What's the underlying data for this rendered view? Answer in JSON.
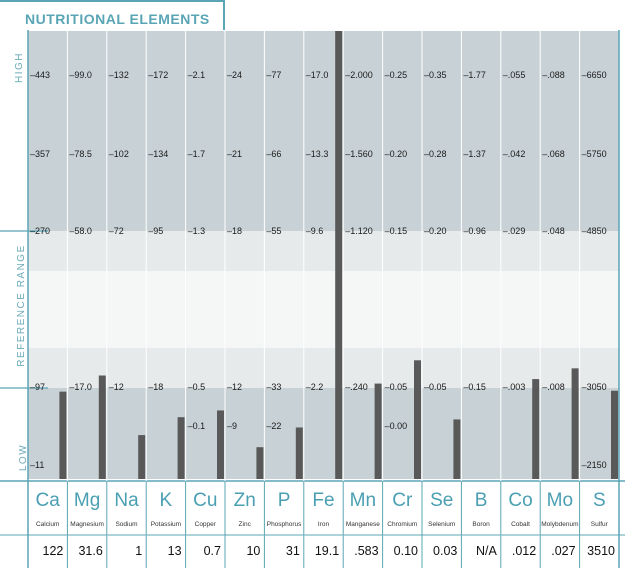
{
  "title": "NUTRITIONAL ELEMENTS",
  "band_labels": {
    "high": "HIGH",
    "reference": "REFERENCE  RANGE",
    "low": "LOW"
  },
  "colors": {
    "accent": "#5aa5b5",
    "high_band": "#c8d2d6",
    "low_band": "#c8d2d6",
    "ref_outer": "#e7eaeb",
    "ref_inner": "#f5f6f6",
    "bar": "#595959"
  },
  "chart_data": {
    "type": "bar",
    "title": "NUTRITIONAL ELEMENTS",
    "note": "Each element has its own vertical scale; bar height shows the result relative to that element's tick scale.",
    "elements": [
      {
        "symbol": "Ca",
        "name": "Calcium",
        "ticks": [
          "443",
          "357",
          "270",
          "",
          "97",
          "",
          "11"
        ],
        "result": "122"
      },
      {
        "symbol": "Mg",
        "name": "Magnesium",
        "ticks": [
          "99.0",
          "78.5",
          "58.0",
          "",
          "17.0",
          "",
          ""
        ],
        "result": "31.6"
      },
      {
        "symbol": "Na",
        "name": "Sodium",
        "ticks": [
          "132",
          "102",
          "72",
          "",
          "12",
          "",
          ""
        ],
        "result": "1"
      },
      {
        "symbol": "K",
        "name": "Potassium",
        "ticks": [
          "172",
          "134",
          "95",
          "",
          "18",
          "",
          ""
        ],
        "result": "13"
      },
      {
        "symbol": "Cu",
        "name": "Copper",
        "ticks": [
          "2.1",
          "1.7",
          "1.3",
          "",
          "0.5",
          "0.1",
          ""
        ],
        "result": "0.7"
      },
      {
        "symbol": "Zn",
        "name": "Zinc",
        "ticks": [
          "24",
          "21",
          "18",
          "",
          "12",
          "9",
          ""
        ],
        "result": "10"
      },
      {
        "symbol": "P",
        "name": "Phosphorus",
        "ticks": [
          "77",
          "66",
          "55",
          "",
          "33",
          "22",
          ""
        ],
        "result": "31"
      },
      {
        "symbol": "Fe",
        "name": "Iron",
        "ticks": [
          "17.0",
          "13.3",
          "9.6",
          "",
          "2.2",
          "",
          ""
        ],
        "result": "19.1"
      },
      {
        "symbol": "Mn",
        "name": "Manganese",
        "ticks": [
          "2.000",
          "1.560",
          "1.120",
          "",
          ".240",
          "",
          ""
        ],
        "result": ".583"
      },
      {
        "symbol": "Cr",
        "name": "Chromium",
        "ticks": [
          "0.25",
          "0.20",
          "0.15",
          "",
          "0.05",
          "0.00",
          ""
        ],
        "result": "0.10"
      },
      {
        "symbol": "Se",
        "name": "Selenium",
        "ticks": [
          "0.35",
          "0.28",
          "0.20",
          "",
          "0.05",
          "",
          ""
        ],
        "result": "0.03"
      },
      {
        "symbol": "B",
        "name": "Boron",
        "ticks": [
          "1.77",
          "1.37",
          "0.96",
          "",
          "0.15",
          "",
          ""
        ],
        "result": "N/A"
      },
      {
        "symbol": "Co",
        "name": "Cobalt",
        "ticks": [
          ".055",
          ".042",
          ".029",
          "",
          ".003",
          "",
          ""
        ],
        "result": ".012"
      },
      {
        "symbol": "Mo",
        "name": "Molybdenum",
        "ticks": [
          ".088",
          ".068",
          ".048",
          "",
          ".008",
          "",
          ""
        ],
        "result": ".027"
      },
      {
        "symbol": "S",
        "name": "Sulfur",
        "ticks": [
          "6650",
          "5750",
          "4850",
          "",
          "3050",
          "",
          "2150"
        ],
        "result": "3510"
      }
    ],
    "bar_levels": [
      0.195,
      0.231,
      0.098,
      0.138,
      0.153,
      0.071,
      0.115,
      1.0,
      0.213,
      0.265,
      0.133,
      0,
      0.223,
      0.247,
      0.197
    ]
  }
}
